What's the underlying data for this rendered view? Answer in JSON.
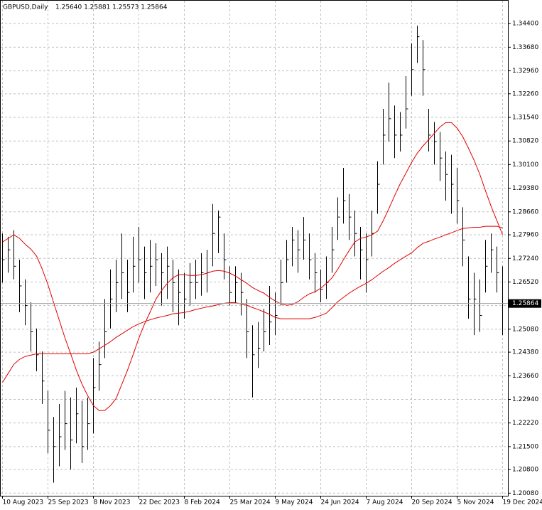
{
  "chart_data": {
    "type": "ohlc",
    "title": "GBPUSD,Daily",
    "subtitle": "1.25640 1.25881 1.25573 1.25864",
    "categories": [
      "10 Aug 2023",
      null,
      null,
      null,
      null,
      null,
      null,
      null,
      "25 Sep 2023",
      null,
      null,
      null,
      null,
      null,
      null,
      null,
      "8 Nov 2023",
      null,
      null,
      null,
      null,
      null,
      null,
      null,
      "22 Dec 2023",
      null,
      null,
      null,
      null,
      null,
      null,
      null,
      "8 Feb 2024",
      null,
      null,
      null,
      null,
      null,
      null,
      null,
      "25 Mar 2024",
      null,
      null,
      null,
      null,
      null,
      null,
      null,
      "9 May 2024",
      null,
      null,
      null,
      null,
      null,
      null,
      null,
      "24 Jun 2024",
      null,
      null,
      null,
      null,
      null,
      null,
      null,
      "7 Aug 2024",
      null,
      null,
      null,
      null,
      null,
      null,
      null,
      "20 Sep 2024",
      null,
      null,
      null,
      null,
      null,
      null,
      null,
      "5 Nov 2024",
      null,
      null,
      null,
      null,
      null,
      null,
      null,
      "19 Dec 2024"
    ],
    "bars": {
      "color": "#000000",
      "high": [
        1.28,
        1.279,
        1.281,
        1.272,
        1.266,
        1.259,
        1.251,
        1.244,
        1.232,
        1.224,
        1.228,
        1.232,
        1.23,
        1.233,
        1.229,
        1.23,
        1.242,
        1.247,
        1.26,
        1.269,
        1.272,
        1.28,
        1.272,
        1.279,
        1.282,
        1.276,
        1.278,
        1.277,
        1.274,
        1.276,
        1.272,
        1.269,
        1.268,
        1.271,
        1.272,
        1.274,
        1.275,
        1.289,
        1.287,
        1.28,
        1.27,
        1.27,
        1.268,
        1.26,
        1.252,
        1.253,
        1.257,
        1.264,
        1.262,
        1.272,
        1.278,
        1.282,
        1.281,
        1.285,
        1.28,
        1.274,
        1.269,
        1.273,
        1.282,
        1.291,
        1.3,
        1.292,
        1.287,
        1.282,
        1.28,
        1.287,
        1.302,
        1.318,
        1.326,
        1.319,
        1.317,
        1.328,
        1.338,
        1.3434,
        1.339,
        1.318,
        1.314,
        1.311,
        1.305,
        1.304,
        1.3,
        1.288,
        1.273,
        1.268,
        1.266,
        1.278,
        1.28,
        1.276,
        1.27
      ],
      "low": [
        1.265,
        1.268,
        1.266,
        1.256,
        1.252,
        1.244,
        1.238,
        1.228,
        1.213,
        1.204,
        1.209,
        1.214,
        1.208,
        1.216,
        1.21,
        1.214,
        1.219,
        1.232,
        1.242,
        1.251,
        1.256,
        1.26,
        1.256,
        1.262,
        1.265,
        1.26,
        1.262,
        1.264,
        1.258,
        1.26,
        1.256,
        1.252,
        1.254,
        1.258,
        1.26,
        1.261,
        1.262,
        1.27,
        1.274,
        1.266,
        1.258,
        1.259,
        1.255,
        1.242,
        1.23,
        1.239,
        1.244,
        1.246,
        1.249,
        1.258,
        1.265,
        1.27,
        1.268,
        1.272,
        1.266,
        1.262,
        1.259,
        1.26,
        1.268,
        1.278,
        1.283,
        1.278,
        1.273,
        1.266,
        1.262,
        1.273,
        1.286,
        1.301,
        1.308,
        1.303,
        1.305,
        1.312,
        1.322,
        1.332,
        1.322,
        1.305,
        1.301,
        1.296,
        1.29,
        1.286,
        1.283,
        1.27,
        1.254,
        1.249,
        1.25,
        1.262,
        1.268,
        1.262,
        1.249
      ],
      "close": [
        1.272,
        1.275,
        1.27,
        1.264,
        1.258,
        1.25,
        1.243,
        1.235,
        1.22,
        1.215,
        1.218,
        1.222,
        1.217,
        1.225,
        1.215,
        1.222,
        1.233,
        1.24,
        1.25,
        1.26,
        1.265,
        1.268,
        1.262,
        1.27,
        1.272,
        1.268,
        1.27,
        1.272,
        1.268,
        1.27,
        1.265,
        1.262,
        1.26,
        1.265,
        1.265,
        1.268,
        1.268,
        1.28,
        1.285,
        1.272,
        1.262,
        1.265,
        1.262,
        1.25,
        1.243,
        1.245,
        1.25,
        1.253,
        1.255,
        1.265,
        1.272,
        1.278,
        1.275,
        1.278,
        1.272,
        1.268,
        1.263,
        1.265,
        1.275,
        1.285,
        1.29,
        1.285,
        1.28,
        1.275,
        1.272,
        1.28,
        1.295,
        1.31,
        1.315,
        1.31,
        1.31,
        1.318,
        1.33,
        1.34,
        1.33,
        1.31,
        1.308,
        1.303,
        1.298,
        1.295,
        1.29,
        1.278,
        1.26,
        1.26,
        1.255,
        1.27,
        1.275,
        1.268,
        1.25864
      ]
    },
    "lines": [
      {
        "color": "#e00000",
        "values": [
          1.2774,
          1.2785,
          1.2796,
          1.2785,
          1.2767,
          1.2752,
          1.2731,
          1.2691,
          1.2644,
          1.2589,
          1.2535,
          1.2481,
          1.2433,
          1.2383,
          1.234,
          1.2305,
          1.2275,
          1.226,
          1.226,
          1.2275,
          1.2297,
          1.234,
          1.2383,
          1.2431,
          1.2481,
          1.2524,
          1.2561,
          1.26,
          1.2626,
          1.2648,
          1.2665,
          1.2674,
          1.2674,
          1.2672,
          1.2672,
          1.2674,
          1.2679,
          1.2685,
          1.2687,
          1.2685,
          1.2679,
          1.267,
          1.2659,
          1.2648,
          1.2635,
          1.2626,
          1.2618,
          1.2605,
          1.2594,
          1.2585,
          1.2581,
          1.2583,
          1.2592,
          1.2605,
          1.2616,
          1.2622,
          1.2633,
          1.2648,
          1.2665,
          1.2691,
          1.272,
          1.2748,
          1.2774,
          1.2785,
          1.2789,
          1.2796,
          1.2807,
          1.2839,
          1.2876,
          1.2915,
          1.2952,
          1.2984,
          1.3017,
          1.3045,
          1.3067,
          1.3086,
          1.3106,
          1.3125,
          1.3138,
          1.3138,
          1.3121,
          1.3095,
          1.306,
          1.3023,
          1.298,
          1.293,
          1.2882,
          1.2839,
          1.2796
        ]
      },
      {
        "color": "#e00000",
        "values": [
          1.2346,
          1.2373,
          1.2401,
          1.2416,
          1.2425,
          1.2429,
          1.2433,
          1.2433,
          1.2433,
          1.2433,
          1.2433,
          1.2433,
          1.2433,
          1.2433,
          1.2433,
          1.2433,
          1.2438,
          1.2448,
          1.2459,
          1.247,
          1.2483,
          1.2494,
          1.2505,
          1.2516,
          1.2524,
          1.2531,
          1.2537,
          1.2542,
          1.2546,
          1.255,
          1.2555,
          1.2557,
          1.2559,
          1.2563,
          1.2568,
          1.2572,
          1.2576,
          1.2579,
          1.2583,
          1.2587,
          1.2589,
          1.2589,
          1.2585,
          1.2581,
          1.2574,
          1.2568,
          1.2561,
          1.2553,
          1.2544,
          1.254,
          1.254,
          1.254,
          1.254,
          1.254,
          1.254,
          1.2544,
          1.255,
          1.2557,
          1.2574,
          1.2592,
          1.2605,
          1.2618,
          1.2629,
          1.2639,
          1.2648,
          1.2659,
          1.2672,
          1.2685,
          1.2696,
          1.2709,
          1.272,
          1.2731,
          1.2741,
          1.2757,
          1.277,
          1.2776,
          1.2783,
          1.2789,
          1.2796,
          1.2802,
          1.2809,
          1.2815,
          1.2817,
          1.2819,
          1.2819,
          1.2822,
          1.2822,
          1.2822,
          1.2817
        ]
      }
    ],
    "last_price": {
      "value": 1.25864,
      "label": "1.25864"
    },
    "ylim": [
      1.2,
      1.3512
    ],
    "yticks": [
      {
        "value": 1.2008,
        "label": "1.20080"
      },
      {
        "value": 1.208,
        "label": "1.20800"
      },
      {
        "value": 1.215,
        "label": "1.21500"
      },
      {
        "value": 1.2222,
        "label": "1.22220"
      },
      {
        "value": 1.2294,
        "label": "1.22940"
      },
      {
        "value": 1.2366,
        "label": "1.23660"
      },
      {
        "value": 1.2438,
        "label": "1.24380"
      },
      {
        "value": 1.2508,
        "label": "1.25080"
      },
      {
        "value": 1.258,
        "label": "1.25800"
      },
      {
        "value": 1.2652,
        "label": "1.26520"
      },
      {
        "value": 1.2724,
        "label": "1.27240"
      },
      {
        "value": 1.2796,
        "label": "1.27960"
      },
      {
        "value": 1.2866,
        "label": "1.28660"
      },
      {
        "value": 1.2938,
        "label": "1.29380"
      },
      {
        "value": 1.301,
        "label": "1.30100"
      },
      {
        "value": 1.3082,
        "label": "1.30820"
      },
      {
        "value": 1.3154,
        "label": "1.31540"
      },
      {
        "value": 1.3226,
        "label": "1.32260"
      },
      {
        "value": 1.3296,
        "label": "1.32960"
      },
      {
        "value": 1.3368,
        "label": "1.33680"
      },
      {
        "value": 1.344,
        "label": "1.34400"
      }
    ],
    "grid": true
  }
}
